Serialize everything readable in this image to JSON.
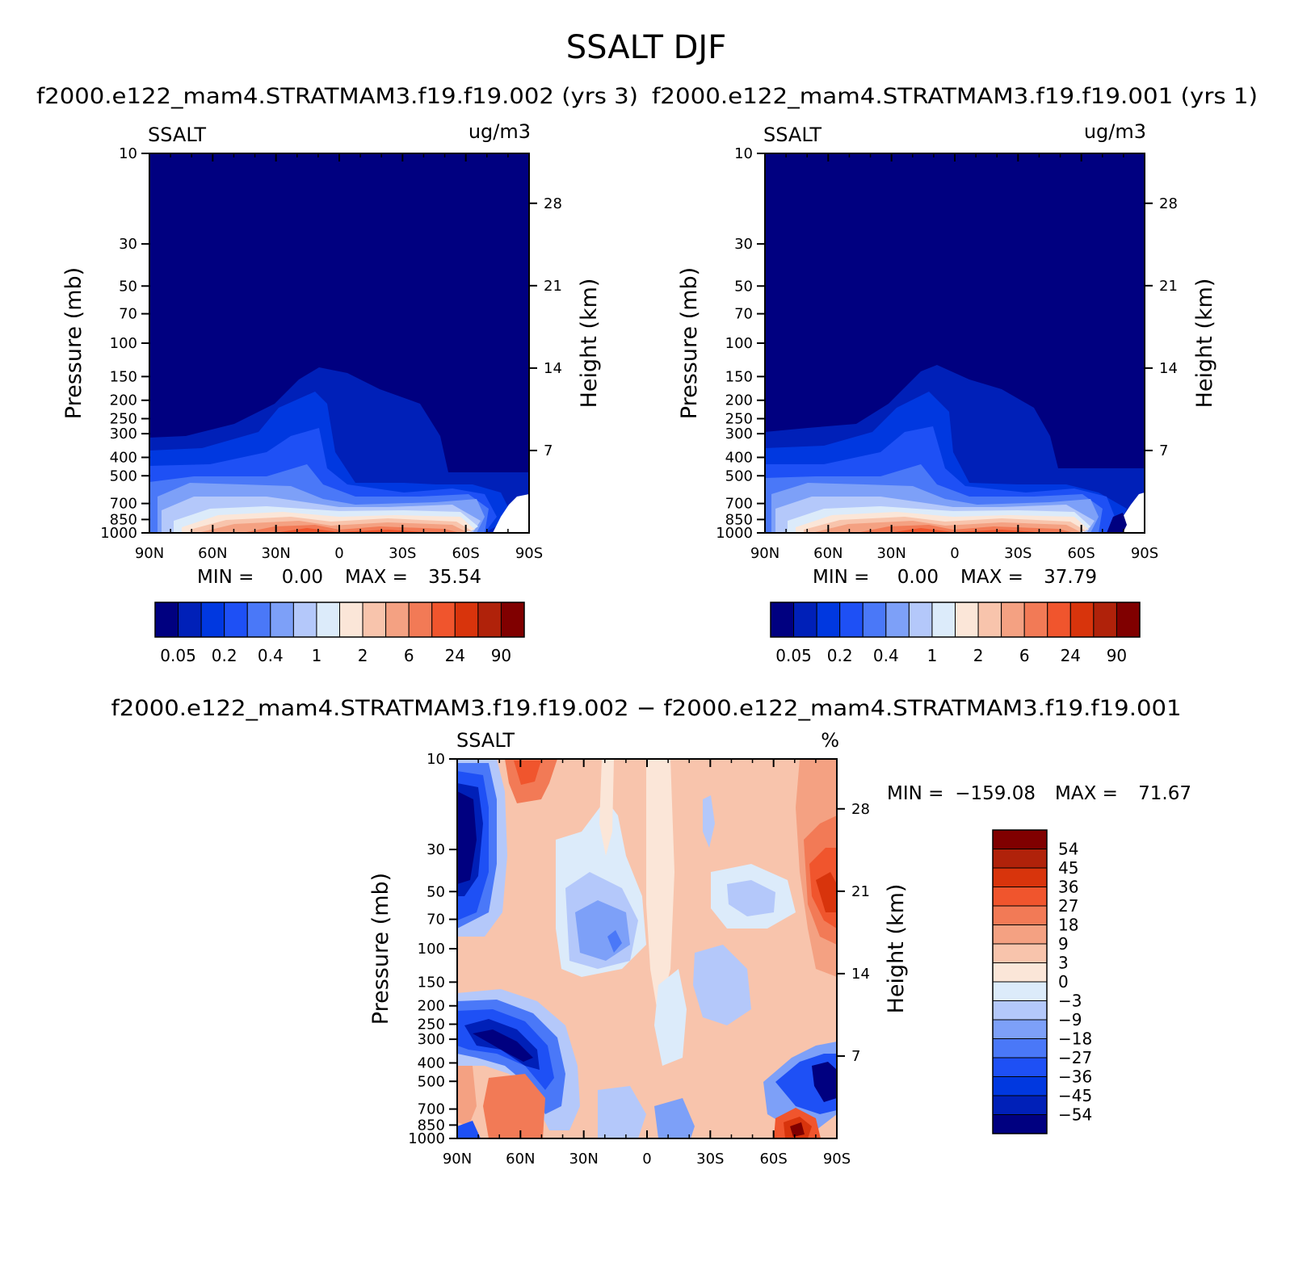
{
  "page_title": "SSALT DJF",
  "chart_data": [
    {
      "id": "top-left",
      "type": "heatmap",
      "case_title": "f2000.e122_mam4.STRATMAM3.f19.f19.002 (yrs 3)",
      "variable": "SSALT",
      "units": "ug/m3",
      "xlabel": "",
      "ylabel": "Pressure (mb)",
      "ylabel_right": "Height (km)",
      "x_ticks": [
        "90N",
        "60N",
        "30N",
        "0",
        "30S",
        "60S",
        "90S"
      ],
      "y_ticks": [
        "10",
        "30",
        "50",
        "70",
        "100",
        "150",
        "200",
        "250",
        "300",
        "400",
        "500",
        "700",
        "850",
        "1000"
      ],
      "height_ticks": [
        "28",
        "21",
        "14",
        "7"
      ],
      "stats": {
        "min_label": "MIN =",
        "min_value": "0.00",
        "max_label": "MAX =",
        "max_value": "35.54"
      },
      "colorbar_labels": [
        "0.05",
        "0.2",
        "0.4",
        "1",
        "2",
        "6",
        "24",
        "90"
      ]
    },
    {
      "id": "top-right",
      "type": "heatmap",
      "case_title": "f2000.e122_mam4.STRATMAM3.f19.f19.001 (yrs 1)",
      "variable": "SSALT",
      "units": "ug/m3",
      "xlabel": "",
      "ylabel": "Pressure (mb)",
      "ylabel_right": "Height (km)",
      "x_ticks": [
        "90N",
        "60N",
        "30N",
        "0",
        "30S",
        "60S",
        "90S"
      ],
      "y_ticks": [
        "10",
        "30",
        "50",
        "70",
        "100",
        "150",
        "200",
        "250",
        "300",
        "400",
        "500",
        "700",
        "850",
        "1000"
      ],
      "height_ticks": [
        "28",
        "21",
        "14",
        "7"
      ],
      "stats": {
        "min_label": "MIN =",
        "min_value": "0.00",
        "max_label": "MAX =",
        "max_value": "37.79"
      },
      "colorbar_labels": [
        "0.05",
        "0.2",
        "0.4",
        "1",
        "2",
        "6",
        "24",
        "90"
      ]
    },
    {
      "id": "difference",
      "type": "heatmap",
      "case_title": "f2000.e122_mam4.STRATMAM3.f19.f19.002 − f2000.e122_mam4.STRATMAM3.f19.f19.001",
      "variable": "SSALT",
      "units": "%",
      "xlabel": "",
      "ylabel": "Pressure (mb)",
      "ylabel_right": "Height (km)",
      "x_ticks": [
        "90N",
        "60N",
        "30N",
        "0",
        "30S",
        "60S",
        "90S"
      ],
      "y_ticks": [
        "10",
        "30",
        "50",
        "70",
        "100",
        "150",
        "200",
        "250",
        "300",
        "400",
        "500",
        "700",
        "850",
        "1000"
      ],
      "height_ticks": [
        "28",
        "21",
        "14",
        "7"
      ],
      "stats": {
        "min_label": "MIN =",
        "min_value": "−159.08",
        "max_label": "MAX =",
        "max_value": "71.67"
      },
      "colorbar_labels": [
        "54",
        "45",
        "36",
        "27",
        "18",
        "9",
        "3",
        "0",
        "−3",
        "−9",
        "−18",
        "−27",
        "−36",
        "−45",
        "−54"
      ]
    }
  ],
  "colors": {
    "seq": [
      "#000080",
      "#0020b8",
      "#0038e0",
      "#1e50f5",
      "#4a78f8",
      "#7da0f8",
      "#b4c8fa",
      "#dcebfa",
      "#fbe6d8",
      "#f8c4ac",
      "#f4a182",
      "#f27a56",
      "#f0552d",
      "#d8340c",
      "#b0220a",
      "#800000"
    ],
    "div": [
      "#800000",
      "#b0220a",
      "#d8340c",
      "#f0552d",
      "#f27a56",
      "#f4a182",
      "#f8c4ac",
      "#fbe6d8",
      "#dcebfa",
      "#b4c8fa",
      "#7da0f8",
      "#4a78f8",
      "#1e50f5",
      "#0038e0",
      "#0020b8",
      "#000080"
    ]
  }
}
